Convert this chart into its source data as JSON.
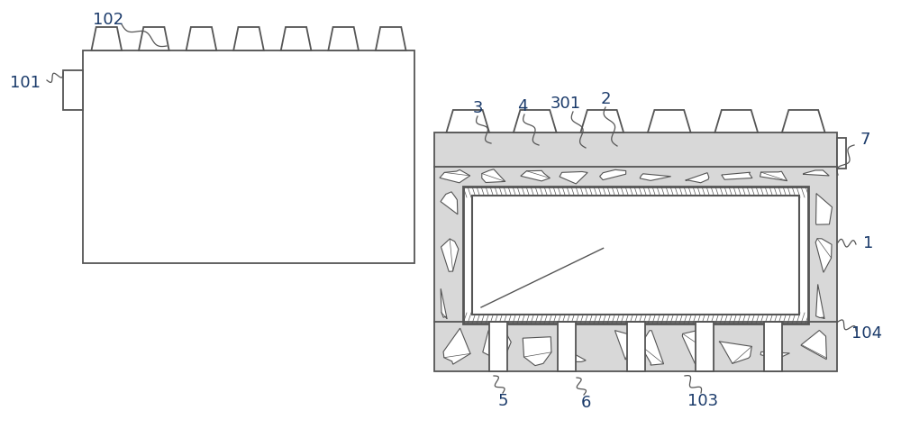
{
  "bg_color": "#ffffff",
  "line_color": "#555555",
  "label_color": "#1a3a6a",
  "figsize": [
    10.0,
    4.77
  ],
  "dpi": 100
}
